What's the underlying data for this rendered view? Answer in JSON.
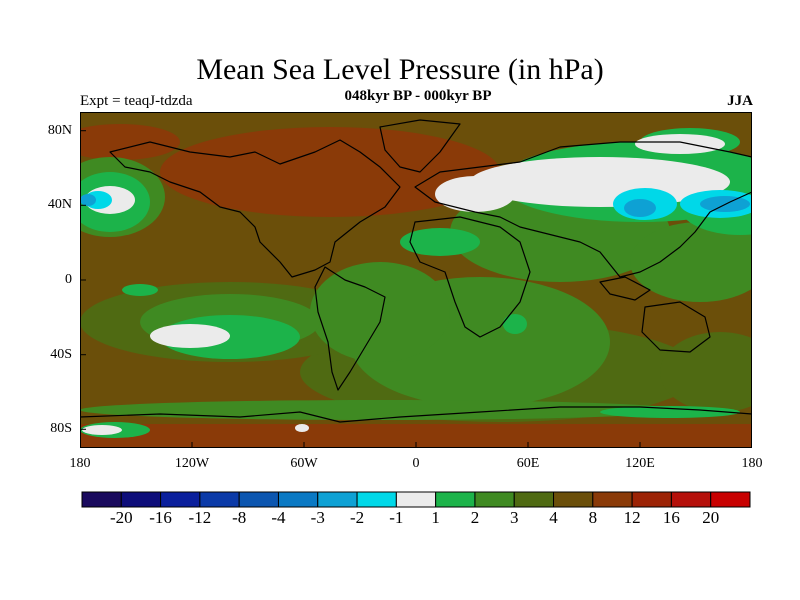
{
  "title": "Mean Sea Level Pressure (in hPa)",
  "subtitle": "048kyr BP - 000kyr BP",
  "experiment": "Expt = teaqJ-tdzda",
  "season": "JJA",
  "map": {
    "lat_labels": [
      "80N",
      "40N",
      "0",
      "40S",
      "80S"
    ],
    "lon_labels": [
      "180",
      "120W",
      "60W",
      "0",
      "60E",
      "120E",
      "180"
    ],
    "lat_range": [
      -90,
      90
    ],
    "lon_range": [
      -180,
      180
    ]
  },
  "colorbar": {
    "labels": [
      "-20",
      "-16",
      "-12",
      "-8",
      "-4",
      "-3",
      "-2",
      "-1",
      "1",
      "2",
      "3",
      "4",
      "8",
      "12",
      "16",
      "20"
    ],
    "colors": [
      "#1a0a5e",
      "#0d0d7a",
      "#0a1f9c",
      "#0b3aa8",
      "#0c56b0",
      "#0a79c4",
      "#0ea1d4",
      "#00d8e8",
      "#ebebeb",
      "#1cb34a",
      "#3f8a22",
      "#4f6a12",
      "#6b4f0a",
      "#8a3a08",
      "#9c2305",
      "#b5100a",
      "#c80000"
    ]
  }
}
